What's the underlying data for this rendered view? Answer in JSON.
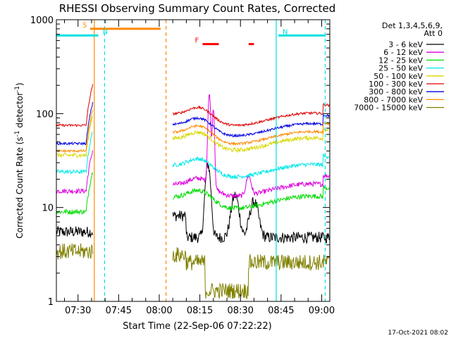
{
  "window": {
    "title": "RHESSI Observing Summary Count Rates, Corrected",
    "footer_date": "17-Oct-2021 08:02"
  },
  "chart_data": {
    "type": "line",
    "title": "RHESSI Observing Summary Count Rates, Corrected",
    "xlabel": "Start Time (22-Sep-06 07:22:22)",
    "ylabel_parts": [
      "Corrected Count Rate (s",
      "-1",
      " detector",
      "-1",
      ")"
    ],
    "yscale": "log",
    "ylim": [
      1,
      1000
    ],
    "xlim_minutes_after_0722": [
      0,
      101
    ],
    "xticks": [
      {
        "label": "07:30",
        "t": 8
      },
      {
        "label": "07:45",
        "t": 23
      },
      {
        "label": "08:00",
        "t": 38
      },
      {
        "label": "08:15",
        "t": 53
      },
      {
        "label": "08:30",
        "t": 68
      },
      {
        "label": "08:45",
        "t": 83
      },
      {
        "label": "09:00",
        "t": 98
      }
    ],
    "yticks": [
      {
        "label": "1",
        "v": 1
      },
      {
        "label": "10",
        "v": 10
      },
      {
        "label": "100",
        "v": 100
      },
      {
        "label": "1000",
        "v": 1000
      }
    ],
    "legend_header": [
      "Det 1,3,4,5,6,9,",
      "Att 0"
    ],
    "legend_position": "right",
    "series": [
      {
        "name": "3 - 6 keV",
        "color": "#000000",
        "base": 4.8,
        "pre": 5.5,
        "noise": 0.14
      },
      {
        "name": "6 - 12 keV",
        "color": "#e000e0",
        "base": 15.5,
        "pre": 15,
        "noise": 0.06
      },
      {
        "name": "12 - 25 keV",
        "color": "#00dd00",
        "base": 11.5,
        "pre": 9,
        "noise": 0.06
      },
      {
        "name": "25 - 50 keV",
        "color": "#00e8e8",
        "base": 25,
        "pre": 24,
        "noise": 0.05
      },
      {
        "name": "50 - 100 keV",
        "color": "#d8d800",
        "base": 48,
        "pre": 36,
        "noise": 0.05
      },
      {
        "name": "100 - 300 keV",
        "color": "#e00000",
        "base": 88,
        "pre": 75,
        "noise": 0.03
      },
      {
        "name": "300 - 800 keV",
        "color": "#0000e0",
        "base": 68,
        "pre": 48,
        "noise": 0.03
      },
      {
        "name": "800 - 7000 keV",
        "color": "#ff8800",
        "base": 56,
        "pre": 40,
        "noise": 0.03
      },
      {
        "name": "7000 - 15000 keV",
        "color": "#808000",
        "base": 2.6,
        "pre": 3.4,
        "noise": 0.2
      }
    ],
    "flags": [
      {
        "label": "S",
        "color": "#ff8800",
        "start": 12.5,
        "end": 38.5,
        "y": 800
      },
      {
        "label": "N",
        "color": "#00e0e0",
        "start": 0,
        "end": 15.5,
        "y": 680
      },
      {
        "label": "N",
        "color": "#00e0e0",
        "start": 82,
        "end": 99.5,
        "y": 680
      },
      {
        "label": "F",
        "color": "#ff0000",
        "start": 54,
        "end": 60,
        "y": 550
      },
      {
        "label": "",
        "color": "#ff0000",
        "start": 71,
        "end": 73,
        "y": 550
      }
    ],
    "vlines": [
      {
        "t": 14,
        "color": "#ff8800",
        "style": "solid"
      },
      {
        "t": 40.5,
        "color": "#ff8800",
        "style": "dashed"
      },
      {
        "t": 17.8,
        "color": "#00e0e0",
        "style": "dashed"
      },
      {
        "t": 81.2,
        "color": "#00e0e0",
        "style": "solid"
      },
      {
        "t": 99.3,
        "color": "#00e0e0",
        "style": "dashed"
      }
    ],
    "data_windows": [
      [
        0,
        13.5
      ],
      [
        43,
        101
      ]
    ],
    "flare_peaks_minutes": [
      54,
      58
    ]
  }
}
